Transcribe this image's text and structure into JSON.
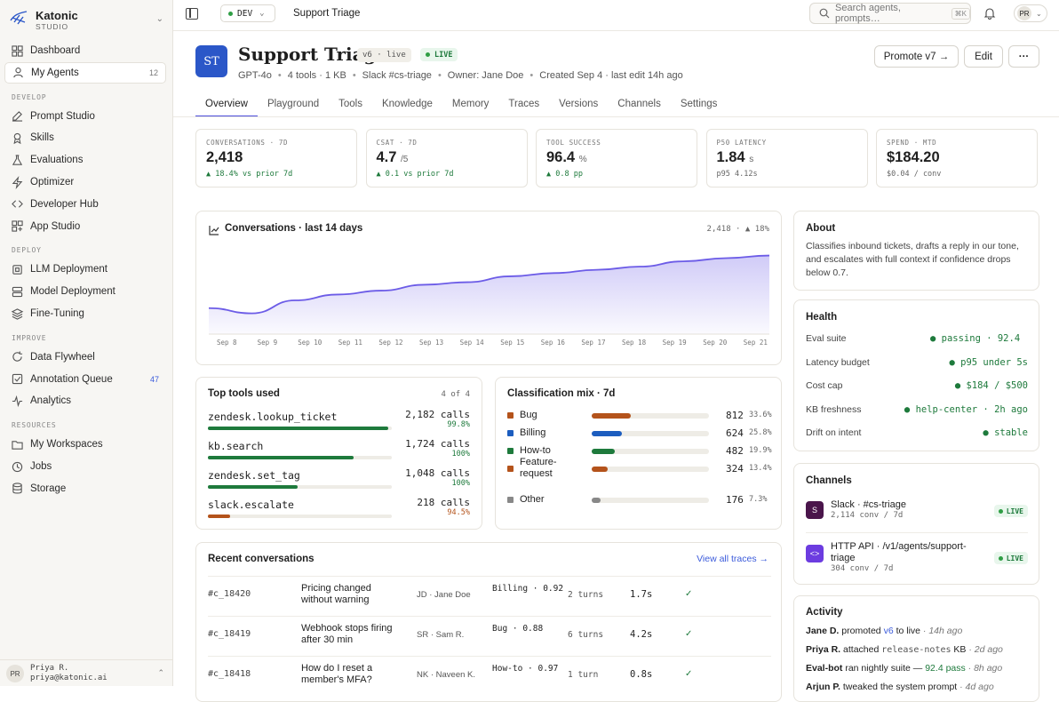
{
  "sidebar": {
    "brand": {
      "name": "Katonic",
      "sub": "STUDIO"
    },
    "items_top": [
      {
        "label": "Dashboard",
        "icon": "grid-icon"
      },
      {
        "label": "My Agents",
        "icon": "user-icon",
        "count": "12"
      }
    ],
    "sections": [
      {
        "title": "DEVELOP",
        "items": [
          {
            "label": "Prompt Studio",
            "icon": "edit-icon"
          },
          {
            "label": "Skills",
            "icon": "award-icon"
          },
          {
            "label": "Evaluations",
            "icon": "flask-icon"
          },
          {
            "label": "Optimizer",
            "icon": "zap-icon"
          },
          {
            "label": "Developer Hub",
            "icon": "code-icon"
          },
          {
            "label": "App Studio",
            "icon": "apps-icon"
          }
        ]
      },
      {
        "title": "DEPLOY",
        "items": [
          {
            "label": "LLM Deployment",
            "icon": "cpu-icon"
          },
          {
            "label": "Model Deployment",
            "icon": "server-icon"
          },
          {
            "label": "Fine-Tuning",
            "icon": "layers-icon"
          }
        ]
      },
      {
        "title": "IMPROVE",
        "items": [
          {
            "label": "Data Flywheel",
            "icon": "refresh-icon"
          },
          {
            "label": "Annotation Queue",
            "icon": "check-square-icon",
            "count": "47"
          },
          {
            "label": "Analytics",
            "icon": "activity-icon"
          }
        ]
      },
      {
        "title": "RESOURCES",
        "items": [
          {
            "label": "My Workspaces",
            "icon": "folder-icon"
          },
          {
            "label": "Jobs",
            "icon": "clock-icon"
          },
          {
            "label": "Storage",
            "icon": "database-icon"
          }
        ]
      }
    ],
    "user": {
      "initials": "PR",
      "name": "Priya R.",
      "email": "priya@katonic.ai"
    }
  },
  "topbar": {
    "env": "DEV",
    "breadcrumb": "Support Triage",
    "search_placeholder": "Search agents, prompts…",
    "search_kbd": "⌘K",
    "avatar": "PR"
  },
  "agent": {
    "logo": "ST",
    "title": "Support Triage",
    "version": "v6 · live",
    "status": "LIVE",
    "meta": [
      "GPT-4o",
      "4 tools · 1 KB",
      "Slack #cs-triage",
      "Owner: Jane Doe",
      "Created Sep 4 · last edit 14h ago"
    ],
    "buttons": {
      "promote": "Promote v7 →",
      "edit": "Edit",
      "more": "···"
    }
  },
  "tabs": [
    "Overview",
    "Playground",
    "Tools",
    "Knowledge",
    "Memory",
    "Traces",
    "Versions",
    "Channels",
    "Settings"
  ],
  "kpis": [
    {
      "label": "CONVERSATIONS · 7D",
      "value": "2,418",
      "unit": "",
      "sub": "▲ 18.4% vs prior 7d",
      "positive": true
    },
    {
      "label": "CSAT · 7D",
      "value": "4.7",
      "unit": "/5",
      "sub": "▲ 0.1 vs prior 7d",
      "positive": true
    },
    {
      "label": "TOOL SUCCESS",
      "value": "96.4",
      "unit": "%",
      "sub": "▲ 0.8 pp",
      "positive": true
    },
    {
      "label": "P50 LATENCY",
      "value": "1.84",
      "unit": "s",
      "sub": "p95 4.12s",
      "positive": false
    },
    {
      "label": "SPEND · MTD",
      "value": "$184.20",
      "unit": "",
      "sub": "$0.04 / conv",
      "positive": false
    }
  ],
  "conv_chart": {
    "title": "Conversations · last 14 days",
    "summary": "2,418 · ▲ 18%",
    "accent": "#6c5ce7"
  },
  "chart_data": {
    "type": "area",
    "title": "Conversations · last 14 days",
    "x": [
      "Sep 8",
      "Sep 9",
      "Sep 10",
      "Sep 11",
      "Sep 12",
      "Sep 13",
      "Sep 14",
      "Sep 15",
      "Sep 16",
      "Sep 17",
      "Sep 18",
      "Sep 19",
      "Sep 20",
      "Sep 21"
    ],
    "values": [
      140,
      132,
      152,
      161,
      167,
      176,
      180,
      189,
      194,
      199,
      204,
      212,
      217,
      221
    ],
    "ylim": [
      100,
      230
    ],
    "grid": false
  },
  "top_tools": {
    "title": "Top tools used",
    "count": "4 of 4",
    "items": [
      {
        "name": "zendesk.lookup_ticket",
        "calls": "2,182 calls",
        "pct": "99.8%",
        "fill": 0.98,
        "color": "#1e7a3c"
      },
      {
        "name": "kb.search",
        "calls": "1,724 calls",
        "pct": "100%",
        "fill": 0.79,
        "color": "#1e7a3c"
      },
      {
        "name": "zendesk.set_tag",
        "calls": "1,048 calls",
        "pct": "100%",
        "fill": 0.49,
        "color": "#1e7a3c"
      },
      {
        "name": "slack.escalate",
        "calls": "218 calls",
        "pct": "94.5%",
        "fill": 0.12,
        "color": "#b4531b"
      }
    ]
  },
  "classification": {
    "title": "Classification mix · 7d",
    "items": [
      {
        "name": "Bug",
        "value": "812",
        "pct": "33.6%",
        "fill": 0.336,
        "color": "#b4531b"
      },
      {
        "name": "Billing",
        "value": "624",
        "pct": "25.8%",
        "fill": 0.258,
        "color": "#1c5dbf"
      },
      {
        "name": "How-to",
        "value": "482",
        "pct": "19.9%",
        "fill": 0.199,
        "color": "#1e7a3c"
      },
      {
        "name": "Feature-request",
        "value": "324",
        "pct": "13.4%",
        "fill": 0.134,
        "color": "#b4531b"
      },
      {
        "name": "Other",
        "value": "176",
        "pct": "7.3%",
        "fill": 0.073,
        "color": "#888888"
      }
    ]
  },
  "recent": {
    "title": "Recent conversations",
    "link": "View all traces →",
    "rows": [
      {
        "id": "#c_18420",
        "title": "Pricing changed without warning",
        "user": "JD · Jane Doe",
        "class": "Billing · 0.92",
        "turns": "2 turns",
        "latency": "1.7s",
        "status": "✓"
      },
      {
        "id": "#c_18419",
        "title": "Webhook stops firing after 30 min",
        "user": "SR · Sam R.",
        "class": "Bug · 0.88",
        "turns": "6 turns",
        "latency": "4.2s",
        "status": "✓"
      },
      {
        "id": "#c_18418",
        "title": "How do I reset a member's MFA?",
        "user": "NK · Naveen K.",
        "class": "How-to · 0.97",
        "turns": "1 turn",
        "latency": "0.8s",
        "status": "✓"
      }
    ]
  },
  "about": {
    "title": "About",
    "text": "Classifies inbound tickets, drafts a reply in our tone, and escalates with full context if confidence drops below 0.7."
  },
  "health": {
    "title": "Health",
    "rows": [
      {
        "label": "Eval suite",
        "value": "● passing · 92.4"
      },
      {
        "label": "Latency budget",
        "value": "● p95 under 5s"
      },
      {
        "label": "Cost cap",
        "value": "● $184 / $500"
      },
      {
        "label": "KB freshness",
        "value": "● help-center · 2h ago"
      },
      {
        "label": "Drift on intent",
        "value": "● stable"
      }
    ]
  },
  "channels": {
    "title": "Channels",
    "items": [
      {
        "icon": "slack-icon",
        "glyph": "S",
        "name": "Slack · #cs-triage",
        "sub": "2,114 conv / 7d",
        "status": "LIVE",
        "color": "#4a154b"
      },
      {
        "icon": "api-icon",
        "glyph": "<>",
        "name": "HTTP API · /v1/agents/support-triage",
        "sub": "304 conv / 7d",
        "status": "LIVE",
        "color": "#6c3ce0"
      }
    ]
  },
  "activity": {
    "title": "Activity",
    "items": [
      {
        "who": "Jane D.",
        "what": " promoted ",
        "obj": "v6",
        "rest": " to live",
        "when": " · 14h ago"
      },
      {
        "who": "Priya R.",
        "what": " attached ",
        "obj": "release-notes",
        "rest": " KB",
        "when": " · 2d ago"
      },
      {
        "who": "Eval-bot",
        "what": " ran nightly suite — ",
        "obj": "92.4 pass",
        "rest": "",
        "when": " · 8h ago"
      },
      {
        "who": "Arjun P.",
        "what": " tweaked the system prompt",
        "obj": "",
        "rest": "",
        "when": " · 4d ago"
      }
    ]
  }
}
